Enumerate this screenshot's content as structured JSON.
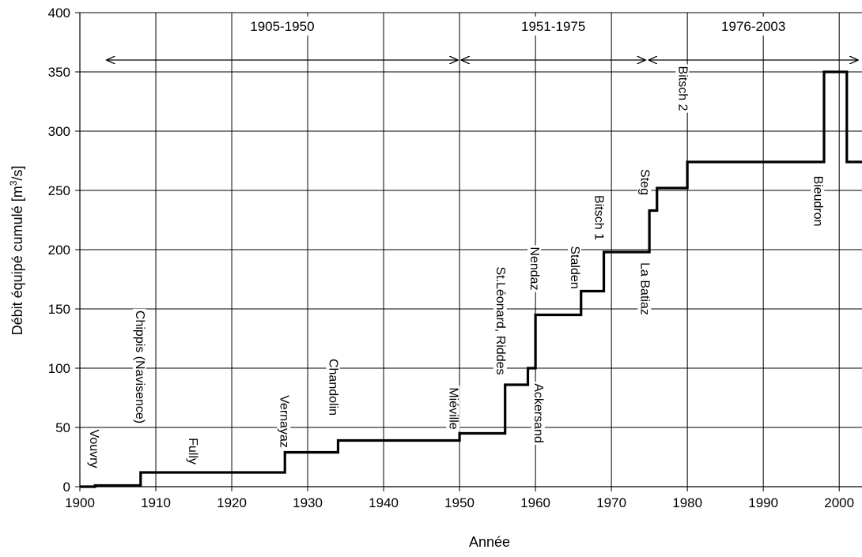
{
  "chart_data": {
    "type": "line",
    "step": true,
    "title": "",
    "xlabel": "Année",
    "ylabel_main": "Débit équipé cumulé [m",
    "ylabel_sup": "3",
    "ylabel_end": "/s]",
    "xlim": [
      1900,
      2003
    ],
    "ylim": [
      0,
      400
    ],
    "grid": true,
    "xticks": [
      1900,
      1910,
      1920,
      1930,
      1940,
      1950,
      1960,
      1970,
      1980,
      1990,
      2000
    ],
    "yticks": [
      0,
      50,
      100,
      150,
      200,
      250,
      300,
      350,
      400
    ],
    "series": [
      {
        "x": [
          1900,
          1902,
          1908,
          1915,
          1927,
          1934,
          1950,
          1956,
          1959,
          1960,
          1966,
          1969,
          1975,
          1976,
          1980,
          1998,
          2001,
          2003
        ],
        "y": [
          0,
          1,
          12,
          12,
          29,
          39,
          45,
          86,
          100,
          145,
          165,
          198,
          233,
          252,
          274,
          350,
          274,
          274
        ]
      }
    ],
    "periods": [
      {
        "label": "1905-1950",
        "start": 1903.5,
        "end": 1949.8
      },
      {
        "label": "1951-1975",
        "start": 1950.2,
        "end": 1974.5
      },
      {
        "label": "1976-2003",
        "start": 1974.9,
        "end": 2002.5
      }
    ],
    "annotations": [
      {
        "text": "Vouvry",
        "x": 1902,
        "y": 32
      },
      {
        "text": "Chippis (Navisence)",
        "x": 1908,
        "y": 101
      },
      {
        "text": "Fully",
        "x": 1915,
        "y": 30
      },
      {
        "text": "Vernayaz",
        "x": 1927,
        "y": 55
      },
      {
        "text": "Chandolin",
        "x": 1933.5,
        "y": 84
      },
      {
        "text": "Miéville",
        "x": 1949.3,
        "y": 66
      },
      {
        "text": "St.Léonard, Riddes",
        "x": 1955.5,
        "y": 140
      },
      {
        "text": "Ackersand",
        "x": 1960.5,
        "y": 62
      },
      {
        "text": "Nendaz",
        "x": 1960,
        "y": 184
      },
      {
        "text": "Stalden",
        "x": 1965.3,
        "y": 185
      },
      {
        "text": "Bitsch 1",
        "x": 1968.5,
        "y": 227
      },
      {
        "text": "La Batiaz",
        "x": 1974.5,
        "y": 167
      },
      {
        "text": "Steg",
        "x": 1974.5,
        "y": 257
      },
      {
        "text": "Bitsch 2",
        "x": 1979.5,
        "y": 336
      },
      {
        "text": "Bieudron",
        "x": 1997.3,
        "y": 241
      }
    ]
  }
}
